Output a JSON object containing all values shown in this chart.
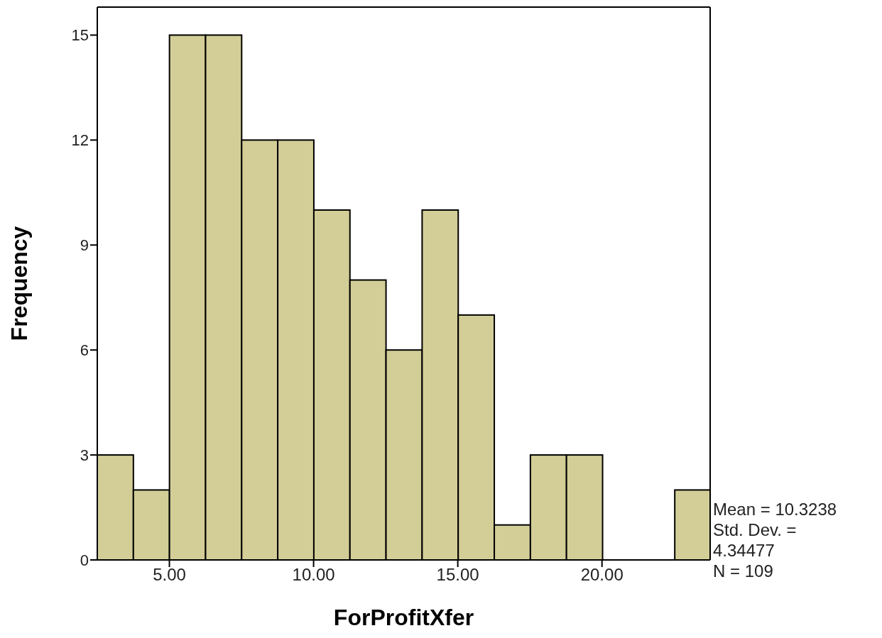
{
  "chart_data": {
    "type": "histogram",
    "xlabel": "ForProfitXfer",
    "ylabel": "Frequency",
    "bins": [
      2.5,
      3.75,
      5,
      6.25,
      7.5,
      8.75,
      10,
      11.25,
      12.5,
      13.75,
      15,
      16.25,
      17.5,
      18.75,
      20,
      21.25,
      22.5,
      23.75
    ],
    "values": [
      3,
      2,
      15,
      15,
      12,
      12,
      10,
      8,
      6,
      10,
      7,
      1,
      3,
      3,
      0,
      0,
      2
    ],
    "color": "#d3ce97",
    "xlim": [
      2.5,
      23.75
    ],
    "xticks": [
      {
        "value": 5,
        "label": "5.00"
      },
      {
        "value": 10,
        "label": "10.00"
      },
      {
        "value": 15,
        "label": "15.00"
      },
      {
        "value": 20,
        "label": "20.00"
      }
    ],
    "ylim": [
      0,
      15.8
    ],
    "yticks": [
      0,
      3,
      6,
      9,
      12,
      15
    ],
    "grid": false,
    "annotations": [
      "Mean = 10.3238",
      "Std. Dev. = 4.34477",
      "N = 109"
    ]
  }
}
